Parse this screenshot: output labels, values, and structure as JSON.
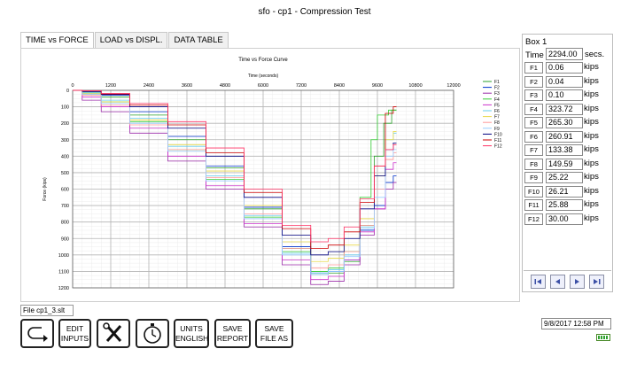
{
  "window": {
    "title": "sfo - cp1 - Compression Test"
  },
  "tabs": [
    {
      "label": "TIME vs FORCE",
      "active": true
    },
    {
      "label": "LOAD vs DISPL.",
      "active": false
    },
    {
      "label": "DATA TABLE",
      "active": false
    }
  ],
  "chart_data": {
    "type": "line",
    "title": "Time vs Force Curve",
    "xlabel": "Time (seconds)",
    "ylabel": "Force (kips)",
    "xlim": [
      0,
      12000
    ],
    "ylim": [
      0,
      1200
    ],
    "y_inverted": true,
    "x_axis_position": "top",
    "xticks": [
      0,
      1200,
      2400,
      3600,
      4800,
      6000,
      7200,
      8400,
      9600,
      10800,
      12000
    ],
    "yticks": [
      0,
      100,
      200,
      300,
      400,
      500,
      600,
      700,
      800,
      900,
      1000,
      1100,
      1200
    ],
    "grid": true,
    "legend": "right",
    "series": [
      {
        "name": "F1",
        "color": "#2ca02c",
        "x": [
          0,
          600,
          1200,
          2400,
          3600,
          4800,
          6000,
          7200,
          7800,
          8300,
          8800,
          9300,
          9700,
          9900,
          10200
        ],
        "y": [
          0,
          10,
          40,
          150,
          300,
          470,
          720,
          960,
          1120,
          1110,
          1040,
          820,
          400,
          200,
          120
        ]
      },
      {
        "name": "F2",
        "color": "#0033cc",
        "x": [
          0,
          600,
          1200,
          2400,
          3600,
          4800,
          6000,
          7200,
          7800,
          8300,
          8800,
          9300,
          9700,
          10000,
          10200
        ],
        "y": [
          0,
          8,
          30,
          130,
          280,
          460,
          710,
          950,
          1110,
          1100,
          1030,
          850,
          700,
          560,
          520
        ]
      },
      {
        "name": "F3",
        "color": "#9a2aa8",
        "x": [
          0,
          600,
          1200,
          2400,
          3600,
          4800,
          6000,
          7200,
          7800,
          8300,
          8800,
          9300,
          9700,
          10000,
          10200
        ],
        "y": [
          0,
          60,
          130,
          260,
          430,
          600,
          830,
          1060,
          1180,
          1160,
          1060,
          880,
          720,
          600,
          560
        ]
      },
      {
        "name": "F4",
        "color": "#33cc33",
        "x": [
          0,
          600,
          1200,
          2400,
          3600,
          4800,
          6000,
          7200,
          7800,
          8300,
          8800,
          9300,
          9500,
          9700,
          10200
        ],
        "y": [
          0,
          20,
          70,
          190,
          360,
          540,
          770,
          980,
          1100,
          1080,
          980,
          650,
          300,
          150,
          120
        ]
      },
      {
        "name": "F5",
        "color": "#cc33cc",
        "x": [
          0,
          600,
          1200,
          2400,
          3600,
          4800,
          6000,
          7200,
          7800,
          8300,
          8800,
          9300,
          9700,
          10000,
          10200
        ],
        "y": [
          0,
          40,
          100,
          230,
          400,
          580,
          810,
          1030,
          1150,
          1130,
          1030,
          860,
          720,
          480,
          440
        ]
      },
      {
        "name": "F6",
        "color": "#66ccee",
        "x": [
          0,
          600,
          1200,
          2400,
          3600,
          4800,
          6000,
          7200,
          7800,
          8300,
          8800,
          9300,
          9700,
          10000,
          10200
        ],
        "y": [
          0,
          15,
          60,
          170,
          340,
          520,
          760,
          990,
          1110,
          1090,
          1000,
          830,
          600,
          300,
          260
        ]
      },
      {
        "name": "F7",
        "color": "#e8d94a",
        "x": [
          0,
          600,
          1200,
          2400,
          3600,
          4800,
          6000,
          7200,
          7800,
          8300,
          8800,
          9300,
          9700,
          10000,
          10200
        ],
        "y": [
          0,
          20,
          70,
          180,
          330,
          490,
          700,
          920,
          1040,
          1020,
          940,
          780,
          520,
          300,
          250
        ]
      },
      {
        "name": "F8",
        "color": "#ff9999",
        "x": [
          0,
          600,
          1200,
          2400,
          3600,
          4800,
          6000,
          7200,
          7800,
          8300,
          8800,
          9300,
          9700,
          10000,
          10200
        ],
        "y": [
          0,
          30,
          90,
          210,
          360,
          530,
          750,
          960,
          1080,
          1060,
          980,
          820,
          600,
          420,
          380
        ]
      },
      {
        "name": "F9",
        "color": "#99ccff",
        "x": [
          0,
          600,
          1200,
          2400,
          3600,
          4800,
          6000,
          7200,
          7800,
          8300,
          8800,
          9300,
          9700,
          10000,
          10200
        ],
        "y": [
          0,
          25,
          80,
          200,
          370,
          550,
          780,
          1000,
          1120,
          1100,
          1010,
          840,
          650,
          400,
          360
        ]
      },
      {
        "name": "F10",
        "color": "#000080",
        "x": [
          0,
          600,
          1200,
          2400,
          3600,
          4800,
          6000,
          7200,
          7800,
          8300,
          8800,
          9300,
          9700,
          10000,
          10200
        ],
        "y": [
          0,
          5,
          25,
          100,
          230,
          400,
          650,
          880,
          1000,
          980,
          900,
          720,
          520,
          360,
          320
        ]
      },
      {
        "name": "F11",
        "color": "#cc0000",
        "x": [
          0,
          600,
          1200,
          2400,
          3600,
          4800,
          6000,
          7200,
          7800,
          8300,
          8800,
          9300,
          9700,
          10000,
          10200
        ],
        "y": [
          0,
          4,
          22,
          90,
          210,
          380,
          620,
          840,
          960,
          940,
          860,
          680,
          460,
          140,
          100
        ]
      },
      {
        "name": "F12",
        "color": "#ff3366",
        "x": [
          0,
          600,
          1200,
          2400,
          3600,
          4800,
          6000,
          7200,
          7800,
          8300,
          8800,
          9300,
          9700,
          10000,
          10200
        ],
        "y": [
          0,
          3,
          18,
          80,
          190,
          350,
          600,
          820,
          920,
          900,
          830,
          660,
          460,
          360,
          330
        ]
      }
    ]
  },
  "box1": {
    "title": "Box 1",
    "time_label": "Time",
    "time_value": "2294.00",
    "time_unit": "secs.",
    "readings": [
      {
        "name": "F1",
        "value": "0.06",
        "unit": "kips"
      },
      {
        "name": "F2",
        "value": "0.04",
        "unit": "kips"
      },
      {
        "name": "F3",
        "value": "0.10",
        "unit": "kips"
      },
      {
        "name": "F4",
        "value": "323.72",
        "unit": "kips"
      },
      {
        "name": "F5",
        "value": "265.30",
        "unit": "kips"
      },
      {
        "name": "F6",
        "value": "260.91",
        "unit": "kips"
      },
      {
        "name": "F7",
        "value": "133.38",
        "unit": "kips"
      },
      {
        "name": "F8",
        "value": "149.59",
        "unit": "kips"
      },
      {
        "name": "F9",
        "value": "25.22",
        "unit": "kips"
      },
      {
        "name": "F10",
        "value": "26.21",
        "unit": "kips"
      },
      {
        "name": "F11",
        "value": "25.88",
        "unit": "kips"
      },
      {
        "name": "F12",
        "value": "30.00",
        "unit": "kips"
      }
    ],
    "nav": [
      "first-icon",
      "prev-icon",
      "next-icon",
      "last-icon"
    ]
  },
  "status": {
    "file_label": "File cp1_3.slt",
    "datetime": "9/8/2017 12:58 PM",
    "battery_icon": "battery-icon"
  },
  "toolbar": {
    "back_icon": "return-arrow-icon",
    "edit_inputs": [
      "EDIT",
      "INPUTS"
    ],
    "tools_icon": "tools-icon",
    "timer_icon": "stopwatch-icon",
    "units": [
      "UNITS",
      "ENGLISH"
    ],
    "save_report": [
      "SAVE",
      "REPORT"
    ],
    "save_file_as": [
      "SAVE",
      "FILE AS"
    ]
  }
}
